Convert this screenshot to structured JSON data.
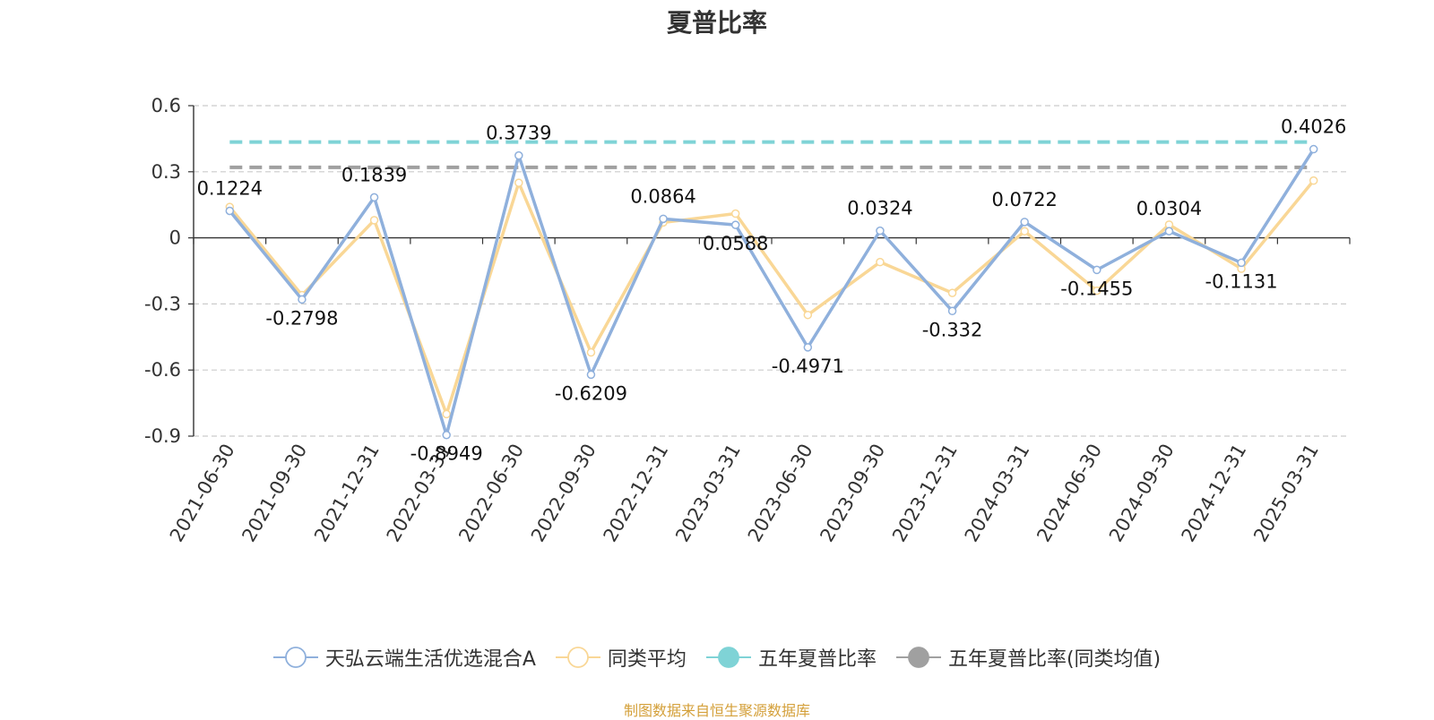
{
  "source_note": "制图数据来自恒生聚源数据库",
  "colors": {
    "fund": "#8fb0dc",
    "peer_avg": "#f9d796",
    "five_year": "#7fd3d6",
    "five_year_peer": "#a0a0a0",
    "axis": "#333333",
    "grid": "#cccccc"
  },
  "chart_data": {
    "type": "line",
    "title": "夏普比率",
    "xlabel": "",
    "ylabel": "",
    "ylim": [
      -0.9,
      0.6
    ],
    "yticks": [
      0.6,
      0.3,
      0,
      -0.3,
      -0.6,
      -0.9
    ],
    "ytick_labels": [
      "0.6",
      "0.3",
      "0",
      "-0.3",
      "-0.6",
      "-0.9"
    ],
    "grid": true,
    "legend_position": "bottom",
    "categories": [
      "2021-06-30",
      "2021-09-30",
      "2021-12-31",
      "2022-03-31",
      "2022-06-30",
      "2022-09-30",
      "2022-12-31",
      "2023-03-31",
      "2023-06-30",
      "2023-09-30",
      "2023-12-31",
      "2024-03-31",
      "2024-06-30",
      "2024-09-30",
      "2024-12-31",
      "2025-03-31"
    ],
    "series": [
      {
        "name": "天弘云端生活优选混合A",
        "color": "#8fb0dc",
        "marker": "hollow-circle",
        "values": [
          0.1224,
          -0.2798,
          0.1839,
          -0.8949,
          0.3739,
          -0.6209,
          0.0864,
          0.0588,
          -0.4971,
          0.0324,
          -0.332,
          0.0722,
          -0.1455,
          0.0304,
          -0.1131,
          0.4026
        ],
        "data_labels": [
          "0.1224",
          "-0.2798",
          "0.1839",
          "-0.8949",
          "0.3739",
          "-0.6209",
          "0.0864",
          "0.0588",
          "-0.4971",
          "0.0324",
          "-0.332",
          "0.0722",
          "-0.1455",
          "0.0304",
          "-0.1131",
          "0.4026"
        ]
      },
      {
        "name": "同类平均",
        "color": "#f9d796",
        "marker": "hollow-circle",
        "values": [
          0.14,
          -0.26,
          0.08,
          -0.8,
          0.25,
          -0.52,
          0.07,
          0.11,
          -0.35,
          -0.11,
          -0.25,
          0.03,
          -0.24,
          0.06,
          -0.14,
          0.26
        ]
      },
      {
        "name": "五年夏普比率",
        "color": "#7fd3d6",
        "marker": "filled-circle",
        "style": "dashed",
        "constant": 0.435
      },
      {
        "name": "五年夏普比率(同类均值)",
        "color": "#a0a0a0",
        "marker": "filled-circle",
        "style": "dashed",
        "constant": 0.32
      }
    ]
  }
}
